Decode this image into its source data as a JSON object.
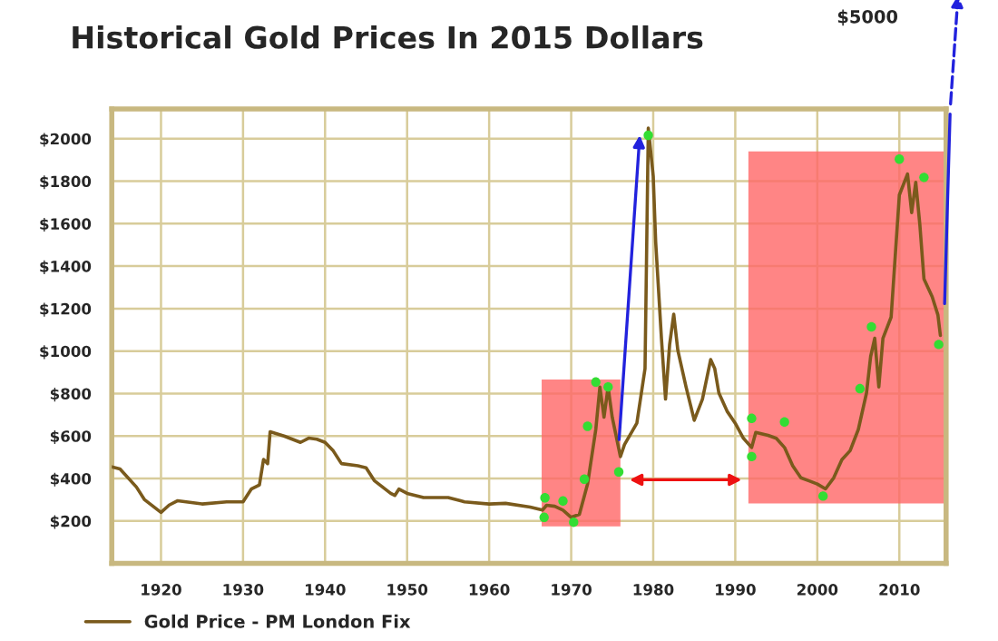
{
  "chart_data": {
    "type": "line",
    "title": "Historical Gold Prices In 2015 Dollars",
    "xlim": [
      1914,
      2015.7
    ],
    "ylim": [
      0,
      2140
    ],
    "xticks": [
      1920,
      1930,
      1940,
      1950,
      1960,
      1970,
      1980,
      1990,
      2000,
      2010
    ],
    "yticks": [
      {
        "value": 200,
        "label": "$200"
      },
      {
        "value": 400,
        "label": "$400"
      },
      {
        "value": 600,
        "label": "$600"
      },
      {
        "value": 800,
        "label": "$800"
      },
      {
        "value": 1000,
        "label": "$1000"
      },
      {
        "value": 1200,
        "label": "$1200"
      },
      {
        "value": 1400,
        "label": "$1400"
      },
      {
        "value": 1600,
        "label": "$1600"
      },
      {
        "value": 1800,
        "label": "$1800"
      },
      {
        "value": 2000,
        "label": "$2000"
      }
    ],
    "grid": true,
    "legend": "bottom left",
    "annotations": [
      "$5000"
    ],
    "series": [
      {
        "name": "Gold Price - PM London Fix",
        "color": "#7a5a1c",
        "x": [
          1914,
          1915,
          1917,
          1918,
          1920,
          1921,
          1922,
          1925,
          1928,
          1930,
          1931,
          1932,
          1932.5,
          1933,
          1933.3,
          1935,
          1937,
          1938,
          1939,
          1940,
          1941,
          1942,
          1944,
          1945,
          1946,
          1948,
          1948.5,
          1949,
          1950,
          1952,
          1955,
          1957,
          1960,
          1962,
          1965,
          1966.5,
          1967,
          1968,
          1969,
          1970,
          1971,
          1972,
          1973,
          1973.5,
          1974,
          1974.5,
          1975,
          1976,
          1976.5,
          1978,
          1979,
          1979.4,
          1980,
          1980.3,
          1981,
          1981.5,
          1982,
          1982.5,
          1983,
          1984,
          1985,
          1986,
          1987,
          1987.5,
          1988,
          1989,
          1990,
          1991,
          1992,
          1992.5,
          1994,
          1995,
          1996,
          1997,
          1998,
          1999,
          2000,
          2001,
          2002,
          2003,
          2004,
          2005,
          2006,
          2006.5,
          2007,
          2007.5,
          2008,
          2009,
          2010,
          2011,
          2011.5,
          2012,
          2012.5,
          2013,
          2014,
          2014.7,
          2015
        ],
        "values": [
          455,
          445,
          360,
          300,
          240,
          275,
          295,
          280,
          290,
          290,
          350,
          370,
          490,
          470,
          620,
          600,
          570,
          590,
          585,
          570,
          530,
          470,
          460,
          450,
          390,
          330,
          320,
          350,
          330,
          310,
          310,
          290,
          280,
          283,
          265,
          251,
          274,
          269,
          251,
          217,
          231,
          374,
          631,
          831,
          689,
          831,
          689,
          503,
          560,
          660,
          917,
          2050,
          1823,
          1513,
          1060,
          774,
          1031,
          1174,
          1003,
          831,
          674,
          774,
          960,
          917,
          803,
          717,
          660,
          589,
          546,
          617,
          603,
          589,
          546,
          460,
          403,
          389,
          374,
          351,
          403,
          489,
          531,
          631,
          803,
          974,
          1060,
          831,
          1060,
          1160,
          1735,
          1834,
          1652,
          1795,
          1595,
          1340,
          1256,
          1170,
          1074
        ]
      },
      {
        "type": "scatter",
        "color": "#33dd33",
        "x": [
          1966.7,
          1966.8,
          1969,
          1970.3,
          1971.6,
          1972,
          1973,
          1974.5,
          1975.8,
          1979.4,
          1992,
          1992,
          1996,
          2000.7,
          2005.2,
          2006.6,
          2010,
          2013,
          2014.8
        ],
        "values": [
          217,
          309,
          294,
          194,
          397,
          646,
          854,
          831,
          431,
          2016,
          683,
          503,
          666,
          317,
          823,
          1114,
          1904,
          1818,
          1031
        ]
      }
    ]
  }
}
